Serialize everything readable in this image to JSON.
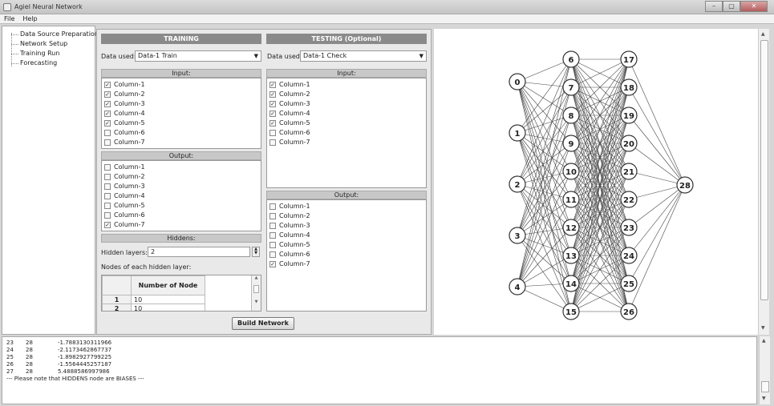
{
  "window": {
    "title": "Agiel Neural Network",
    "controls": [
      "–",
      "▢",
      "✕"
    ]
  },
  "menu": [
    "File",
    "Help"
  ],
  "nav": {
    "items": [
      "Data Source Preparation",
      "Network Setup",
      "Training Run",
      "Forecasting"
    ]
  },
  "training": {
    "header": "TRAINING",
    "data_label": "Data used:",
    "data_value": "Data-1 Train",
    "input_header": "Input:",
    "inputs": [
      {
        "label": "Column-1",
        "checked": true
      },
      {
        "label": "Column-2",
        "checked": true
      },
      {
        "label": "Column-3",
        "checked": true
      },
      {
        "label": "Column-4",
        "checked": true
      },
      {
        "label": "Column-5",
        "checked": true
      },
      {
        "label": "Column-6",
        "checked": false
      },
      {
        "label": "Column-7",
        "checked": false
      }
    ],
    "output_header": "Output:",
    "outputs": [
      {
        "label": "Column-1",
        "checked": false
      },
      {
        "label": "Column-2",
        "checked": false
      },
      {
        "label": "Column-3",
        "checked": false
      },
      {
        "label": "Column-4",
        "checked": false
      },
      {
        "label": "Column-5",
        "checked": false
      },
      {
        "label": "Column-6",
        "checked": false
      },
      {
        "label": "Column-7",
        "checked": true
      }
    ],
    "hiddens_header": "Hiddens:",
    "hidden_layers_label": "Hidden layers:",
    "hidden_layers_value": "2",
    "nodes_label": "Nodes of each hidden layer:",
    "nodes_col_header": "Number of Node",
    "nodes_rows": [
      {
        "idx": "1",
        "val": "10"
      },
      {
        "idx": "2",
        "val": "10"
      }
    ]
  },
  "testing": {
    "header": "TESTING (Optional)",
    "data_label": "Data used:",
    "data_value": "Data-1 Check",
    "input_header": "Input:",
    "inputs": [
      {
        "label": "Column-1",
        "checked": true
      },
      {
        "label": "Column-2",
        "checked": true
      },
      {
        "label": "Column-3",
        "checked": true
      },
      {
        "label": "Column-4",
        "checked": true
      },
      {
        "label": "Column-5",
        "checked": true
      },
      {
        "label": "Column-6",
        "checked": false
      },
      {
        "label": "Column-7",
        "checked": false
      }
    ],
    "output_header": "Output:",
    "outputs": [
      {
        "label": "Column-1",
        "checked": false
      },
      {
        "label": "Column-2",
        "checked": false
      },
      {
        "label": "Column-3",
        "checked": false
      },
      {
        "label": "Column-4",
        "checked": false
      },
      {
        "label": "Column-5",
        "checked": false
      },
      {
        "label": "Column-6",
        "checked": false
      },
      {
        "label": "Column-7",
        "checked": true
      }
    ]
  },
  "build_button": "Build Network",
  "network": {
    "layers": [
      [
        "0",
        "1",
        "2",
        "3",
        "4"
      ],
      [
        "6",
        "7",
        "8",
        "9",
        "10",
        "11",
        "12",
        "13",
        "14",
        "15"
      ],
      [
        "17",
        "18",
        "19",
        "20",
        "21",
        "22",
        "23",
        "24",
        "25",
        "26"
      ],
      [
        "28"
      ]
    ]
  },
  "log": {
    "rows": [
      [
        "23",
        "28",
        "-1.7883130311966"
      ],
      [
        "24",
        "28",
        "-2.1173462867737"
      ],
      [
        "25",
        "28",
        "-1.8982927799225"
      ],
      [
        "26",
        "28",
        "-1.5564445257187"
      ],
      [
        "27",
        "28",
        "5.4888586997986"
      ]
    ],
    "note": "--- Please note that HIDDENS node are BIASES ---"
  }
}
